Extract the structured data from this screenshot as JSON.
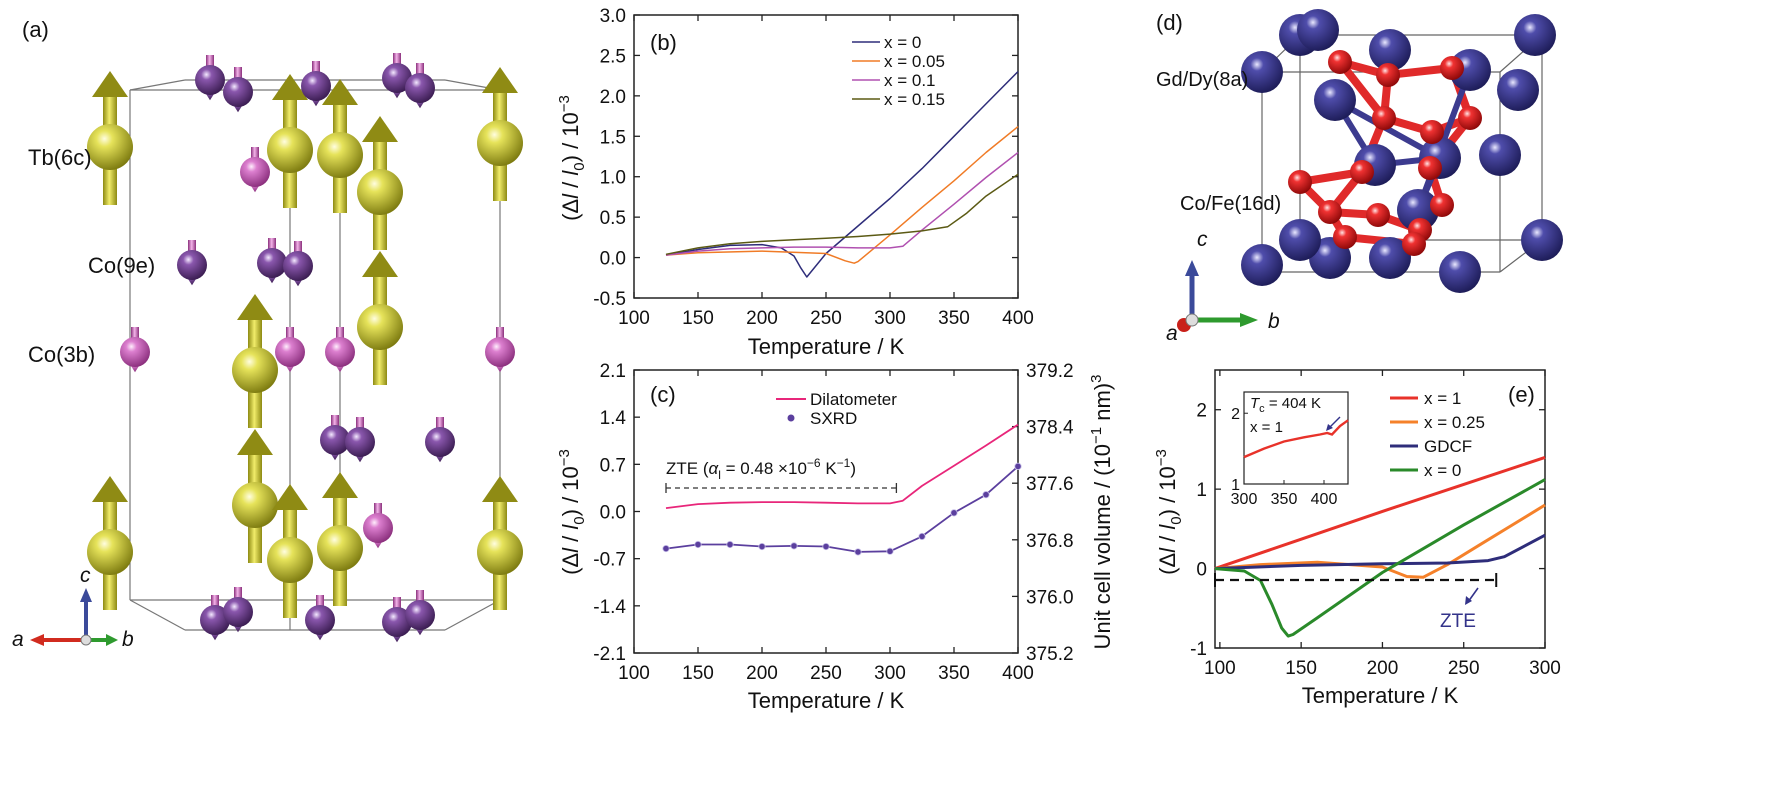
{
  "panel_labels": {
    "a": "(a)",
    "b": "(b)",
    "c": "(c)",
    "d": "(d)",
    "e": "(e)"
  },
  "structure_a": {
    "site_labels": [
      "Tb(6c)",
      "Co(9e)",
      "Co(3b)"
    ],
    "axes": {
      "a": "a",
      "b": "b",
      "c": "c"
    },
    "colors": {
      "tb": "#b5b52a",
      "co9e": "#6b3d8c",
      "co3b": "#c35fb5",
      "arrow": "#c8c21d"
    }
  },
  "structure_d": {
    "site_labels": [
      "Gd/Dy(8a)",
      "Co/Fe(16d)"
    ],
    "axes": {
      "a": "a",
      "b": "b",
      "c": "c"
    },
    "colors": {
      "gd": "#3c3b8f",
      "co": "#e01e1e"
    }
  },
  "chart_data": [
    {
      "id": "b",
      "type": "line",
      "xlabel": "Temperature / K",
      "ylabel": "(Δl / l0) / 10−3",
      "xlim": [
        100,
        400
      ],
      "ylim": [
        -0.5,
        3.0
      ],
      "xticks": [
        "100",
        "150",
        "200",
        "250",
        "300",
        "350",
        "400"
      ],
      "yticks": [
        "-0.5",
        "0.0",
        "0.5",
        "1.0",
        "1.5",
        "2.0",
        "2.5",
        "3.0"
      ],
      "legend": "top-right",
      "series": [
        {
          "name": "x = 0",
          "color": "#2e2d7a",
          "x": [
            125,
            150,
            175,
            200,
            215,
            225,
            230,
            235,
            250,
            275,
            300,
            325,
            350,
            375,
            400
          ],
          "y": [
            0.03,
            0.1,
            0.15,
            0.16,
            0.12,
            0.02,
            -0.12,
            -0.24,
            0.05,
            0.39,
            0.73,
            1.1,
            1.5,
            1.9,
            2.3
          ]
        },
        {
          "name": "x = 0.05",
          "color": "#f07b26",
          "x": [
            125,
            150,
            200,
            250,
            265,
            272,
            275,
            300,
            325,
            350,
            375,
            400
          ],
          "y": [
            0.03,
            0.06,
            0.08,
            0.05,
            -0.04,
            -0.07,
            -0.05,
            0.28,
            0.62,
            0.95,
            1.3,
            1.62
          ]
        },
        {
          "name": "x = 0.1",
          "color": "#b050b0",
          "x": [
            125,
            150,
            175,
            200,
            225,
            250,
            275,
            300,
            310,
            325,
            350,
            375,
            400
          ],
          "y": [
            0.03,
            0.08,
            0.11,
            0.12,
            0.13,
            0.13,
            0.12,
            0.12,
            0.14,
            0.34,
            0.66,
            0.99,
            1.3
          ]
        },
        {
          "name": "x = 0.15",
          "color": "#5b5a14",
          "x": [
            125,
            150,
            175,
            200,
            225,
            250,
            275,
            300,
            325,
            345,
            360,
            375,
            400
          ],
          "y": [
            0.04,
            0.12,
            0.17,
            0.2,
            0.22,
            0.24,
            0.26,
            0.29,
            0.33,
            0.38,
            0.55,
            0.76,
            1.03
          ]
        }
      ]
    },
    {
      "id": "c",
      "type": "line",
      "xlabel": "Temperature / K",
      "ylabel": "(Δl / l0) / 10−3",
      "ylabel_right": "Unit cell volume / (10−1 nm)3",
      "xlim": [
        100,
        400
      ],
      "ylim": [
        -2.1,
        2.1
      ],
      "ylim_right": [
        375.2,
        379.2
      ],
      "xticks": [
        "100",
        "150",
        "200",
        "250",
        "300",
        "350",
        "400"
      ],
      "yticks": [
        "-2.1",
        "-1.4",
        "-0.7",
        "0.0",
        "0.7",
        "1.4",
        "2.1"
      ],
      "yticks_right": [
        "375.2",
        "376.0",
        "376.8",
        "377.6",
        "378.4",
        "379.2"
      ],
      "legend": "top-center",
      "annotation": "ZTE (αl = 0.48 ×10−6 K−1)",
      "annotation_range": [
        125,
        305
      ],
      "series": [
        {
          "name": "Dilatometer",
          "color": "#e8267a",
          "x": [
            125,
            150,
            175,
            200,
            225,
            250,
            275,
            300,
            310,
            325,
            350,
            375,
            400
          ],
          "y": [
            0.05,
            0.11,
            0.13,
            0.14,
            0.14,
            0.13,
            0.12,
            0.12,
            0.16,
            0.38,
            0.68,
            0.98,
            1.29
          ]
        },
        {
          "name": "SXRD",
          "color": "#5b3f9e",
          "x": [
            125,
            150,
            175,
            200,
            225,
            250,
            275,
            300,
            325,
            350,
            375,
            400
          ],
          "y": [
            -0.55,
            -0.49,
            -0.49,
            -0.52,
            -0.51,
            -0.52,
            -0.6,
            -0.59,
            -0.37,
            -0.02,
            0.25,
            0.67
          ]
        }
      ]
    },
    {
      "id": "e",
      "type": "line",
      "xlabel": "Temperature / K",
      "ylabel": "(Δl / l0) / 10−3",
      "xlim": [
        97,
        300
      ],
      "ylim": [
        -1,
        2.5
      ],
      "xticks": [
        "100",
        "150",
        "200",
        "250",
        "300"
      ],
      "yticks": [
        "-1",
        "0",
        "1",
        "2"
      ],
      "legend": "top-right",
      "annotation": "ZTE",
      "annotation_range": [
        97,
        270
      ],
      "series": [
        {
          "name": "x = 1",
          "color": "#e8322a",
          "x": [
            97,
            150,
            200,
            250,
            300
          ],
          "y": [
            0.0,
            0.37,
            0.72,
            1.06,
            1.4
          ]
        },
        {
          "name": "x = 0.25",
          "color": "#f5812a",
          "x": [
            97,
            125,
            160,
            200,
            215,
            225,
            240,
            260,
            280,
            300
          ],
          "y": [
            0.0,
            0.05,
            0.08,
            0.02,
            -0.1,
            -0.11,
            0.05,
            0.3,
            0.55,
            0.8
          ]
        },
        {
          "name": "GDCF",
          "color": "#2e2d7a",
          "x": [
            97,
            150,
            200,
            240,
            265,
            275,
            300
          ],
          "y": [
            0.0,
            0.04,
            0.06,
            0.07,
            0.1,
            0.15,
            0.42
          ]
        },
        {
          "name": "x = 0",
          "color": "#2a8a2a",
          "x": [
            97,
            115,
            125,
            132,
            138,
            142,
            145,
            160,
            200,
            250,
            300
          ],
          "y": [
            0.0,
            -0.03,
            -0.15,
            -0.45,
            -0.75,
            -0.85,
            -0.83,
            -0.62,
            -0.05,
            0.55,
            1.12
          ]
        }
      ],
      "inset": {
        "label": "Tc = 404 K",
        "sublabel": "x = 1",
        "xticks": [
          "300",
          "350",
          "400"
        ],
        "yticks": [
          "1",
          "2"
        ],
        "xlim": [
          300,
          430
        ],
        "ylim": [
          1,
          2.3
        ],
        "color": "#e8322a",
        "x": [
          300,
          325,
          350,
          375,
          395,
          404,
          410,
          420,
          430
        ],
        "y": [
          1.38,
          1.5,
          1.6,
          1.66,
          1.7,
          1.72,
          1.7,
          1.82,
          1.9
        ]
      }
    }
  ]
}
